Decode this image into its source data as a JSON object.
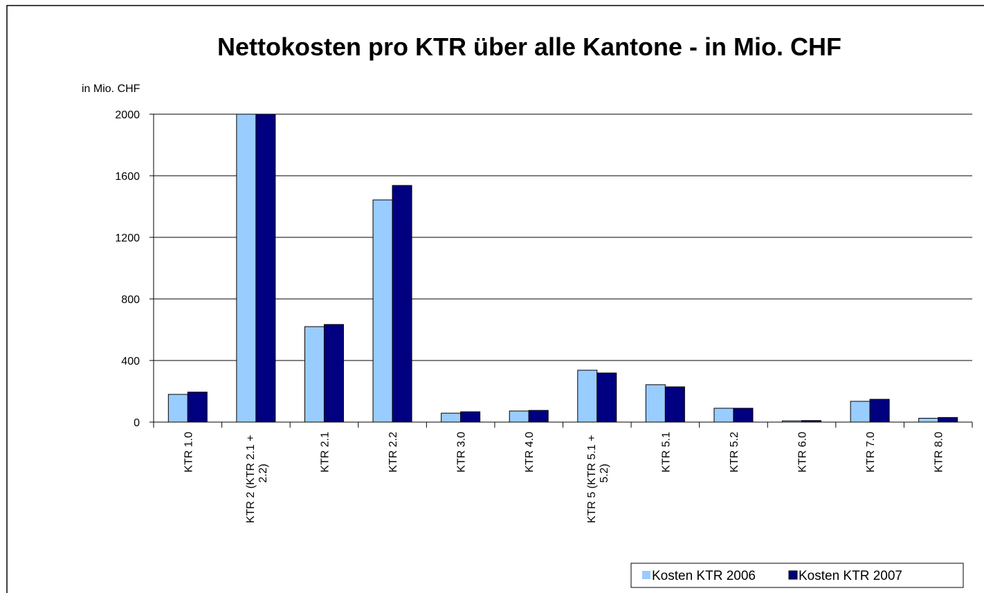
{
  "chart_data": {
    "type": "bar",
    "title": "Nettokosten pro KTR über alle Kantone - in Mio. CHF",
    "y_axis_label": "in Mio. CHF",
    "categories": [
      "KTR 1.0",
      "KTR 2 (KTR 2.1 + 2.2)",
      "KTR 2.1",
      "KTR 2.2",
      "KTR 3.0",
      "KTR 4.0",
      "KTR 5 (KTR 5.1 + 5.2)",
      "KTR 5.1",
      "KTR 5.2",
      "KTR 6.0",
      "KTR 7.0",
      "KTR 8.0"
    ],
    "series": [
      {
        "name": "Kosten KTR 2006",
        "color": "#99ccff",
        "values": [
          180,
          2000,
          620,
          1443,
          58,
          72,
          337,
          243,
          90,
          8,
          135,
          25
        ]
      },
      {
        "name": "Kosten KTR 2007",
        "color": "#000080",
        "values": [
          195,
          2000,
          634,
          1537,
          67,
          76,
          319,
          229,
          90,
          10,
          148,
          30
        ]
      }
    ],
    "ylim": [
      0,
      2000
    ],
    "yticks": [
      0,
      400,
      800,
      1200,
      1600,
      2000
    ],
    "grid": true,
    "legend": "bottom-right"
  }
}
